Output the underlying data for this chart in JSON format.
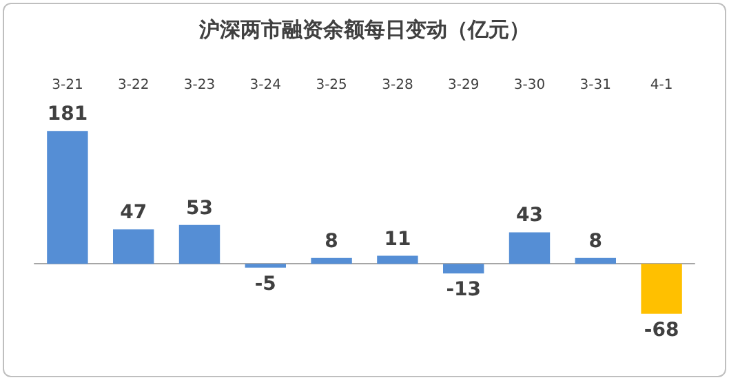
{
  "chart_data": {
    "type": "bar",
    "title": "沪深两市融资余额每日变动（亿元）",
    "categories": [
      "3-21",
      "3-22",
      "3-23",
      "3-24",
      "3-25",
      "3-28",
      "3-29",
      "3-30",
      "3-31",
      "4-1"
    ],
    "values": [
      181,
      47,
      53,
      -5,
      8,
      11,
      -13,
      43,
      8,
      -68
    ],
    "colors": [
      "#558ed5",
      "#558ed5",
      "#558ed5",
      "#558ed5",
      "#558ed5",
      "#558ed5",
      "#558ed5",
      "#558ed5",
      "#558ed5",
      "#ffc000"
    ],
    "data_labels": true
  }
}
